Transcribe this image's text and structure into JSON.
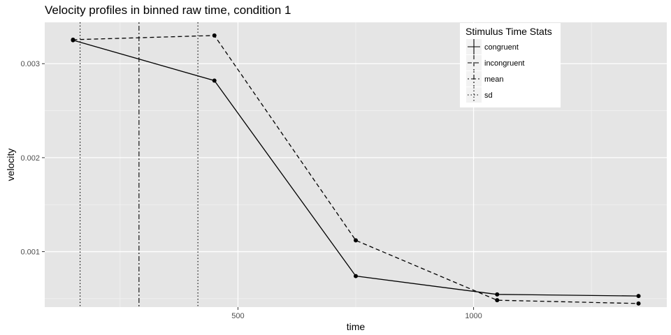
{
  "chart_data": {
    "type": "line",
    "title": "Velocity profiles in binned raw time, condition 1",
    "xlabel": "time",
    "ylabel": "velocity",
    "xlim": [
      90,
      1410
    ],
    "ylim": [
      0.00041,
      0.00344
    ],
    "x_ticks": [
      500,
      1000
    ],
    "x_tick_labels": [
      "500",
      "1000"
    ],
    "y_ticks": [
      0.001,
      0.002,
      0.003
    ],
    "y_tick_labels": [
      "0.001",
      "0.002",
      "0.003"
    ],
    "grid": true,
    "legend": {
      "title": "Stimulus Time Stats",
      "placement": "top-right-inside",
      "entries": [
        "congruent",
        "incongruent",
        "mean",
        "sd"
      ]
    },
    "series": [
      {
        "name": "congruent",
        "linetype": "solid",
        "x": [
          150,
          450,
          750,
          1050,
          1350
        ],
        "y": [
          0.00325,
          0.00282,
          0.00074,
          0.000545,
          0.000528
        ]
      },
      {
        "name": "incongruent",
        "linetype": "dashed",
        "x": [
          150,
          450,
          750,
          1050,
          1350
        ],
        "y": [
          0.003255,
          0.0033,
          0.00112,
          0.000483,
          0.000448
        ]
      }
    ],
    "vlines": [
      {
        "name": "mean",
        "linetype": "dotdash",
        "x": 290
      },
      {
        "name": "sd",
        "linetype": "dotted",
        "x": 165
      },
      {
        "name": "sd",
        "linetype": "dotted",
        "x": 415
      }
    ]
  }
}
